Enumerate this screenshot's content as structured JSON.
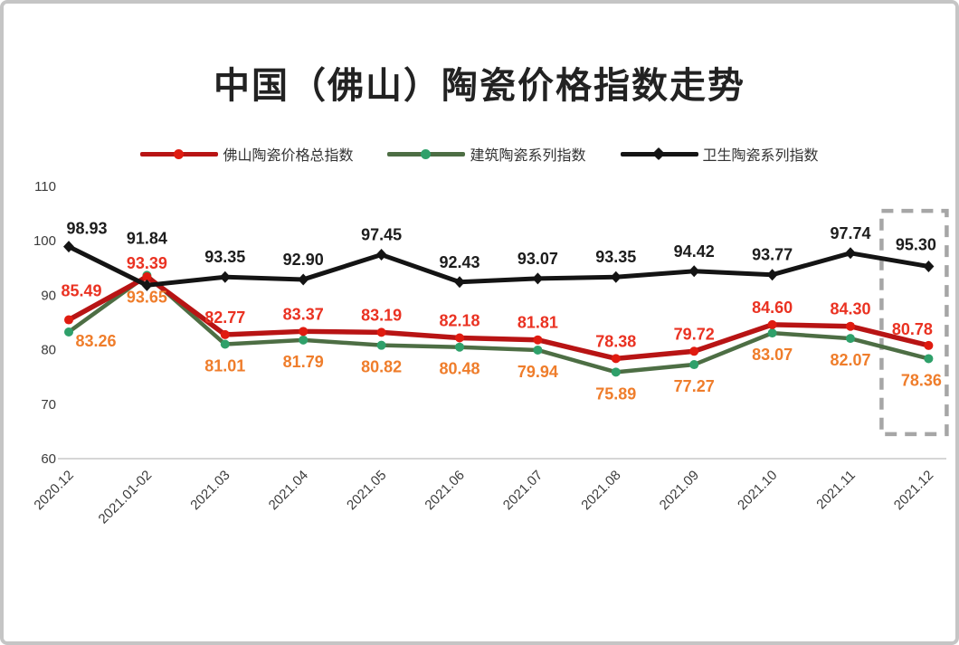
{
  "chart_data": {
    "type": "line",
    "title": "中国（佛山）陶瓷价格指数走势",
    "categories": [
      "2020.12",
      "2021.01-02",
      "2021.03",
      "2021.04",
      "2021.05",
      "2021.06",
      "2021.07",
      "2021.08",
      "2021.09",
      "2021.10",
      "2021.11",
      "2021.12"
    ],
    "series": [
      {
        "name": "佛山陶瓷价格总指数",
        "values": [
          85.49,
          93.39,
          82.77,
          83.37,
          83.19,
          82.18,
          81.81,
          78.38,
          79.72,
          84.6,
          84.3,
          80.78
        ],
        "line_color": "#b81414",
        "marker_color": "#e01b10",
        "label_color": "#ea3222",
        "marker": "circle"
      },
      {
        "name": "建筑陶瓷系列指数",
        "values": [
          83.26,
          93.65,
          81.01,
          81.79,
          80.82,
          80.48,
          79.94,
          75.89,
          77.27,
          83.07,
          82.07,
          78.36
        ],
        "line_color": "#4d6e44",
        "marker_color": "#2fa06a",
        "label_color": "#ef7d2b",
        "marker": "circle"
      },
      {
        "name": "卫生陶瓷系列指数",
        "values": [
          98.93,
          91.84,
          93.35,
          92.9,
          97.45,
          92.43,
          93.07,
          93.35,
          94.42,
          93.77,
          97.74,
          95.3
        ],
        "line_color": "#141414",
        "marker_color": "#141414",
        "label_color": "#1d1d1d",
        "marker": "diamond"
      }
    ],
    "xlabel": "",
    "ylabel": "",
    "ylim": [
      60,
      110
    ],
    "yticks": [
      60,
      70,
      80,
      90,
      100,
      110
    ],
    "grid": false,
    "legend_position": "top",
    "highlight": {
      "category": "2021.12",
      "style": "dashed-box",
      "color": "#a6a6a6"
    }
  }
}
